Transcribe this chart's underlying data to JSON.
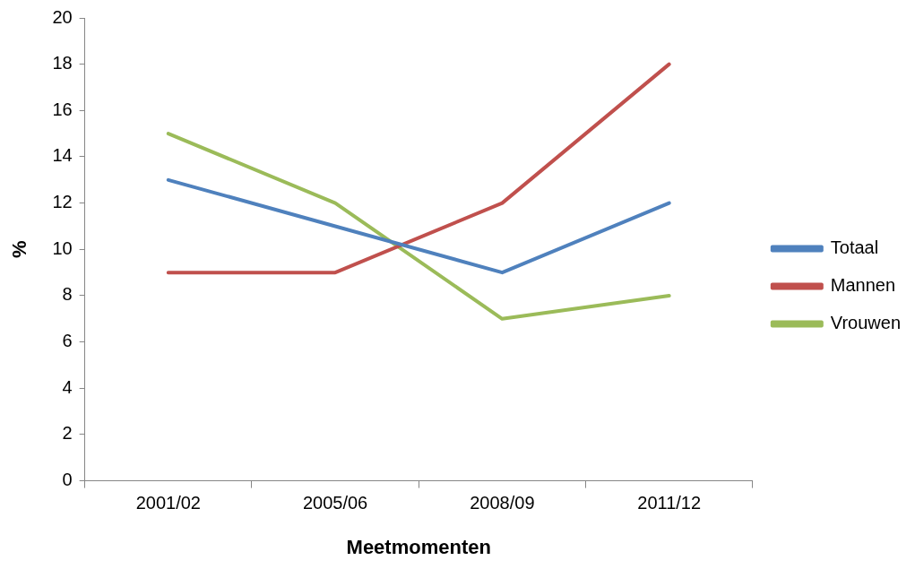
{
  "chart_data": {
    "type": "line",
    "xlabel": "Meetmomenten",
    "ylabel": "%",
    "categories": [
      "2001/02",
      "2005/06",
      "2008/09",
      "2011/12"
    ],
    "series": [
      {
        "name": "Totaal",
        "color": "#4f81bd",
        "values": [
          13,
          11,
          9,
          12
        ]
      },
      {
        "name": "Mannen",
        "color": "#c0504d",
        "values": [
          9,
          9,
          12,
          18
        ]
      },
      {
        "name": "Vrouwen",
        "color": "#9bbb59",
        "values": [
          15,
          12,
          7,
          8
        ]
      }
    ],
    "ylim": [
      0,
      20
    ],
    "yticks": [
      0,
      2,
      4,
      6,
      8,
      10,
      12,
      14,
      16,
      18,
      20
    ],
    "legend": "right",
    "marker": "none"
  }
}
